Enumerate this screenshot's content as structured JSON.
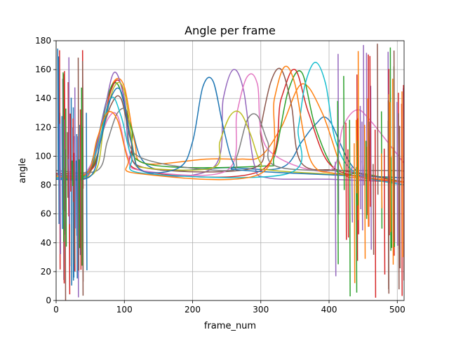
{
  "chart_data": {
    "type": "line",
    "title": "Angle per frame",
    "xlabel": "frame_num",
    "ylabel": "angle",
    "xlim": [
      0,
      510
    ],
    "ylim": [
      0,
      180
    ],
    "xticks": [
      0,
      100,
      200,
      300,
      400,
      500
    ],
    "yticks": [
      0,
      20,
      40,
      60,
      80,
      100,
      120,
      140,
      160,
      180
    ],
    "grid": true,
    "legend": "none",
    "colors": [
      "#1f77b4",
      "#ff7f0e",
      "#2ca02c",
      "#d62728",
      "#9467bd",
      "#8c564b",
      "#e377c2",
      "#7f7f7f",
      "#bcbd22",
      "#17becf"
    ],
    "series": [
      {
        "x": [
          0,
          20,
          45,
          60,
          75,
          90,
          110,
          140,
          250,
          330,
          360,
          380,
          400,
          440,
          510
        ],
        "y": [
          85,
          86,
          88,
          110,
          140,
          150,
          120,
          92,
          92,
          92,
          110,
          122,
          125,
          90,
          80
        ]
      },
      {
        "x": [
          0,
          40,
          55,
          70,
          85,
          100,
          115,
          130,
          220,
          270,
          300,
          330,
          360,
          390,
          420,
          440,
          460,
          510
        ],
        "y": [
          86,
          85,
          95,
          130,
          152,
          148,
          110,
          95,
          98,
          98,
          100,
          120,
          150,
          130,
          90,
          85,
          83,
          82
        ]
      },
      {
        "x": [
          0,
          40,
          60,
          75,
          90,
          110,
          130,
          300,
          320,
          340,
          360,
          380,
          410,
          450,
          510
        ],
        "y": [
          85,
          86,
          100,
          140,
          150,
          120,
          95,
          93,
          100,
          145,
          158,
          120,
          90,
          88,
          82
        ]
      },
      {
        "x": [
          0,
          50,
          65,
          80,
          95,
          110,
          125,
          300,
          330,
          350,
          370,
          400,
          450,
          510
        ],
        "y": [
          88,
          90,
          110,
          145,
          150,
          110,
          90,
          90,
          140,
          160,
          130,
          95,
          85,
          82
        ]
      },
      {
        "x": [
          0,
          30,
          50,
          70,
          85,
          100,
          120,
          230,
          245,
          260,
          275,
          290,
          310,
          400,
          510
        ],
        "y": [
          84,
          84,
          90,
          130,
          158,
          140,
          92,
          92,
          140,
          160,
          145,
          95,
          85,
          84,
          82
        ]
      },
      {
        "x": [
          0,
          45,
          60,
          80,
          95,
          110,
          130,
          290,
          300,
          315,
          330,
          345,
          360,
          420,
          510
        ],
        "y": [
          87,
          88,
          105,
          135,
          140,
          110,
          92,
          92,
          120,
          152,
          160,
          135,
          95,
          90,
          82
        ]
      },
      {
        "x": [
          0,
          35,
          55,
          75,
          90,
          105,
          125,
          250,
          265,
          280,
          295,
          310,
          400,
          420,
          440,
          460,
          510
        ],
        "y": [
          86,
          86,
          98,
          125,
          128,
          100,
          90,
          90,
          130,
          155,
          150,
          105,
          90,
          120,
          132,
          125,
          95
        ]
      },
      {
        "x": [
          0,
          60,
          75,
          90,
          105,
          120,
          250,
          265,
          280,
          295,
          310,
          330,
          500,
          510
        ],
        "y": [
          90,
          90,
          110,
          130,
          130,
          100,
          90,
          100,
          125,
          128,
          110,
          92,
          90,
          88
        ]
      },
      {
        "x": [
          0,
          55,
          70,
          85,
          100,
          115,
          130,
          230,
          240,
          255,
          270,
          285,
          300,
          320,
          510
        ],
        "y": [
          86,
          88,
          120,
          148,
          145,
          100,
          92,
          92,
          110,
          128,
          130,
          115,
          95,
          90,
          85
        ]
      },
      {
        "x": [
          0,
          40,
          60,
          80,
          95,
          110,
          130,
          340,
          355,
          365,
          380,
          395,
          410,
          440,
          510
        ],
        "y": [
          85,
          85,
          105,
          140,
          128,
          100,
          88,
          88,
          120,
          150,
          165,
          150,
          110,
          88,
          80
        ]
      },
      {
        "x": [
          0,
          50,
          65,
          80,
          95,
          110,
          125,
          180,
          200,
          215,
          230,
          245,
          260,
          280,
          510
        ],
        "y": [
          84,
          86,
          110,
          140,
          145,
          110,
          90,
          92,
          110,
          148,
          152,
          120,
          95,
          90,
          85
        ]
      },
      {
        "x": [
          0,
          45,
          60,
          75,
          90,
          105,
          120,
          300,
          320,
          335,
          350,
          365,
          380,
          410,
          510
        ],
        "y": [
          86,
          88,
          112,
          130,
          125,
          98,
          88,
          88,
          140,
          162,
          150,
          110,
          92,
          88,
          82
        ]
      }
    ]
  }
}
